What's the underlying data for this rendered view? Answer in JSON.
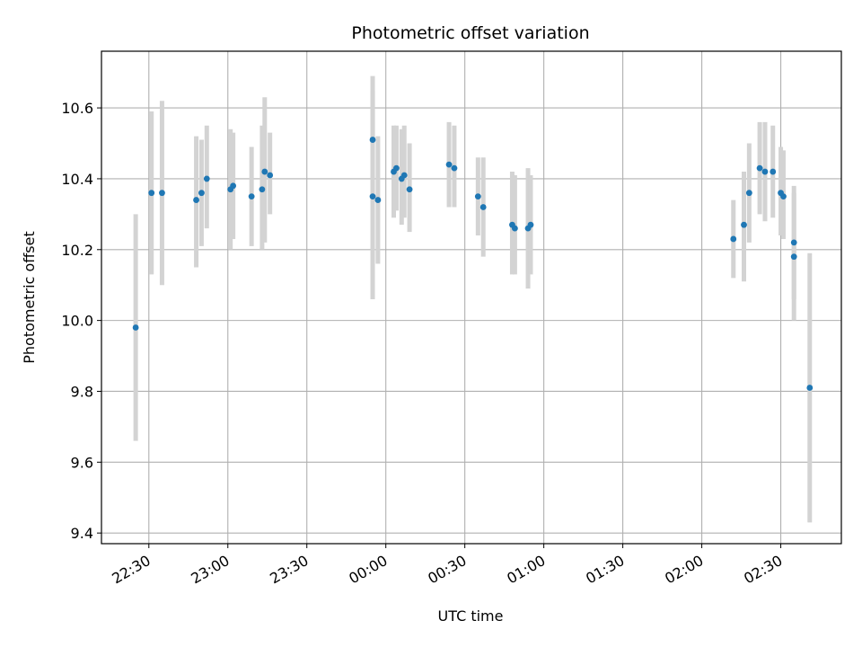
{
  "chart_data": {
    "type": "scatter",
    "title": "Photometric offset variation",
    "xlabel": "UTC time",
    "ylabel": "Photometric offset",
    "x_unit": "UTC clock time",
    "x_range": [
      "22:12",
      "02:53"
    ],
    "ylim": [
      9.37,
      10.76
    ],
    "grid": true,
    "x_ticks": [
      "22:30",
      "23:00",
      "23:30",
      "00:00",
      "00:30",
      "01:00",
      "01:30",
      "02:00",
      "02:30"
    ],
    "y_ticks": [
      "9.4",
      "9.6",
      "9.8",
      "10.0",
      "10.2",
      "10.4",
      "10.6"
    ],
    "marker_color": "#1f77b4",
    "errorbar_color": "#d3d3d3",
    "points": [
      {
        "t": "22:25",
        "y": 9.98,
        "lo": 9.66,
        "hi": 10.3
      },
      {
        "t": "22:31",
        "y": 10.36,
        "lo": 10.13,
        "hi": 10.59
      },
      {
        "t": "22:35",
        "y": 10.36,
        "lo": 10.1,
        "hi": 10.62
      },
      {
        "t": "22:48",
        "y": 10.34,
        "lo": 10.15,
        "hi": 10.52
      },
      {
        "t": "22:50",
        "y": 10.36,
        "lo": 10.21,
        "hi": 10.51
      },
      {
        "t": "22:52",
        "y": 10.4,
        "lo": 10.26,
        "hi": 10.55
      },
      {
        "t": "23:01",
        "y": 10.37,
        "lo": 10.2,
        "hi": 10.54
      },
      {
        "t": "23:02",
        "y": 10.38,
        "lo": 10.23,
        "hi": 10.53
      },
      {
        "t": "23:09",
        "y": 10.35,
        "lo": 10.21,
        "hi": 10.49
      },
      {
        "t": "23:13",
        "y": 10.37,
        "lo": 10.2,
        "hi": 10.55
      },
      {
        "t": "23:14",
        "y": 10.42,
        "lo": 10.22,
        "hi": 10.63
      },
      {
        "t": "23:16",
        "y": 10.41,
        "lo": 10.3,
        "hi": 10.53
      },
      {
        "t": "23:55",
        "y": 10.51,
        "lo": 10.34,
        "hi": 10.69
      },
      {
        "t": "23:55",
        "y": 10.35,
        "lo": 10.06,
        "hi": 10.65
      },
      {
        "t": "23:57",
        "y": 10.34,
        "lo": 10.16,
        "hi": 10.52
      },
      {
        "t": "00:03",
        "y": 10.42,
        "lo": 10.29,
        "hi": 10.55
      },
      {
        "t": "00:04",
        "y": 10.43,
        "lo": 10.31,
        "hi": 10.55
      },
      {
        "t": "00:06",
        "y": 10.4,
        "lo": 10.27,
        "hi": 10.54
      },
      {
        "t": "00:07",
        "y": 10.41,
        "lo": 10.29,
        "hi": 10.55
      },
      {
        "t": "00:09",
        "y": 10.37,
        "lo": 10.25,
        "hi": 10.5
      },
      {
        "t": "00:24",
        "y": 10.44,
        "lo": 10.32,
        "hi": 10.56
      },
      {
        "t": "00:26",
        "y": 10.43,
        "lo": 10.32,
        "hi": 10.55
      },
      {
        "t": "00:35",
        "y": 10.35,
        "lo": 10.24,
        "hi": 10.46
      },
      {
        "t": "00:37",
        "y": 10.32,
        "lo": 10.18,
        "hi": 10.46
      },
      {
        "t": "00:48",
        "y": 10.27,
        "lo": 10.13,
        "hi": 10.42
      },
      {
        "t": "00:49",
        "y": 10.26,
        "lo": 10.13,
        "hi": 10.41
      },
      {
        "t": "00:54",
        "y": 10.26,
        "lo": 10.09,
        "hi": 10.43
      },
      {
        "t": "00:55",
        "y": 10.27,
        "lo": 10.13,
        "hi": 10.41
      },
      {
        "t": "02:12",
        "y": 10.23,
        "lo": 10.12,
        "hi": 10.34
      },
      {
        "t": "02:16",
        "y": 10.27,
        "lo": 10.11,
        "hi": 10.42
      },
      {
        "t": "02:18",
        "y": 10.36,
        "lo": 10.22,
        "hi": 10.5
      },
      {
        "t": "02:22",
        "y": 10.43,
        "lo": 10.3,
        "hi": 10.56
      },
      {
        "t": "02:24",
        "y": 10.42,
        "lo": 10.28,
        "hi": 10.56
      },
      {
        "t": "02:27",
        "y": 10.42,
        "lo": 10.29,
        "hi": 10.55
      },
      {
        "t": "02:30",
        "y": 10.36,
        "lo": 10.24,
        "hi": 10.49
      },
      {
        "t": "02:31",
        "y": 10.35,
        "lo": 10.23,
        "hi": 10.48
      },
      {
        "t": "02:35",
        "y": 10.22,
        "lo": 10.06,
        "hi": 10.38
      },
      {
        "t": "02:35",
        "y": 10.18,
        "lo": 10.0,
        "hi": 10.36
      },
      {
        "t": "02:41",
        "y": 9.81,
        "lo": 9.43,
        "hi": 10.19
      }
    ]
  }
}
